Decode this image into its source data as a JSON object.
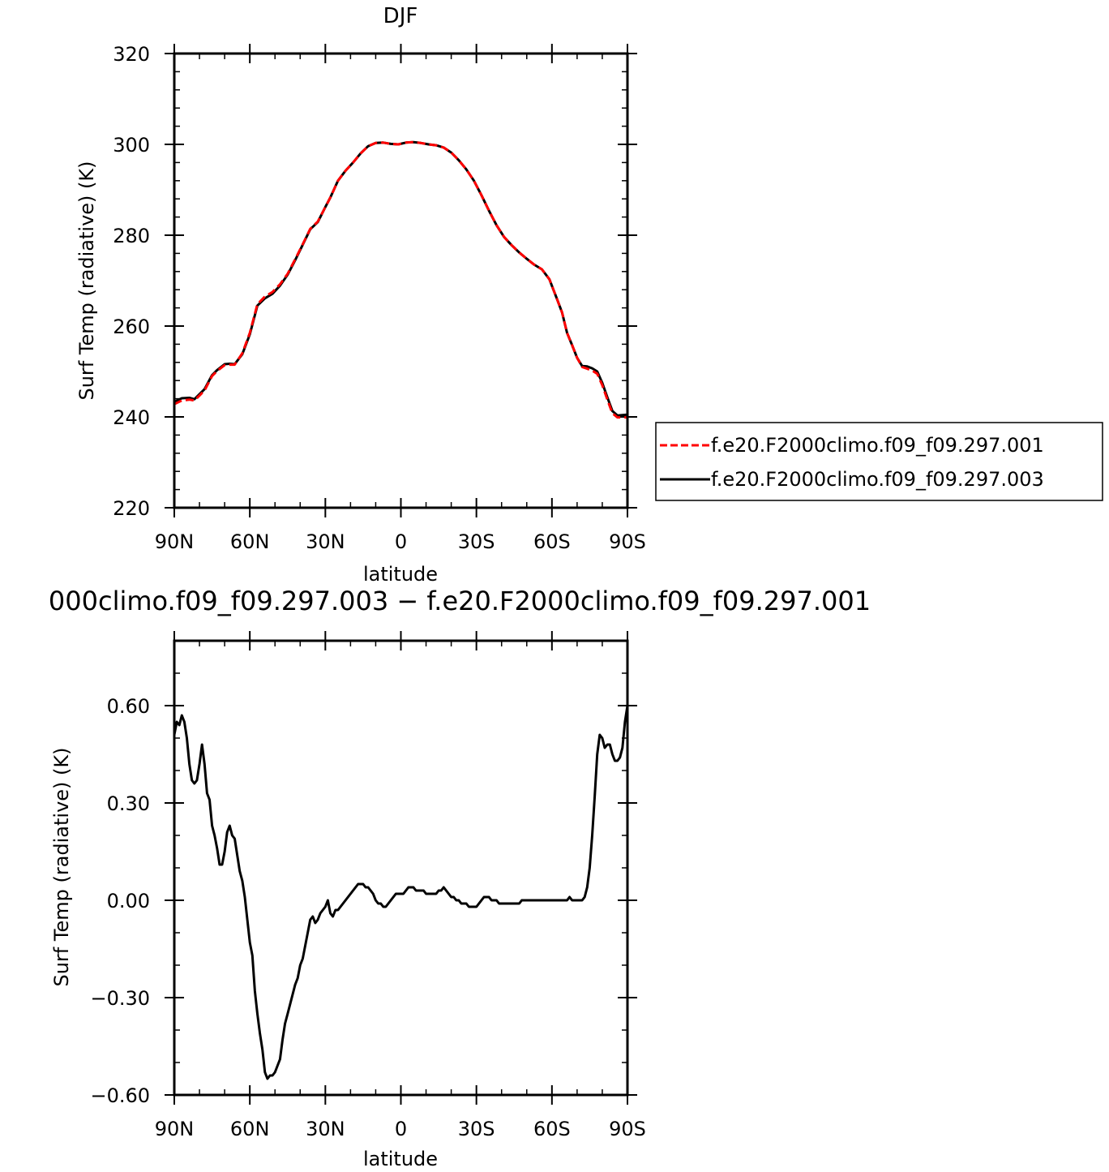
{
  "chart_data": [
    {
      "type": "line",
      "title": "DJF",
      "xlabel": "latitude",
      "ylabel": "Surf Temp (radiative) (K)",
      "x_axis": {
        "range": [
          90,
          -90
        ],
        "ticks": [
          90,
          60,
          30,
          0,
          -30,
          -60,
          -90
        ],
        "tick_labels": [
          "90N",
          "60N",
          "30N",
          "0",
          "30S",
          "60S",
          "90S"
        ]
      },
      "ylim": [
        220,
        320
      ],
      "y_ticks": [
        220,
        240,
        260,
        280,
        300,
        320
      ],
      "y_tick_labels": [
        "220",
        "240",
        "260",
        "280",
        "300",
        "320"
      ],
      "grid": false,
      "legend_position": "outside-right",
      "series": [
        {
          "name": "f.e20.F2000climo.f09_f09.297.001",
          "color": "#ff0000",
          "style": "dashed",
          "x": [
            90,
            87,
            84,
            82,
            80,
            78,
            75,
            73,
            70,
            68,
            66,
            63,
            60,
            57,
            54,
            51,
            48,
            45,
            42,
            39,
            36,
            33,
            30,
            28,
            25,
            22,
            19,
            16,
            13,
            10,
            7,
            4,
            1,
            -2,
            -5,
            -8,
            -11,
            -14,
            -17,
            -20,
            -23,
            -26,
            -29,
            -32,
            -35,
            -38,
            -41,
            -44,
            -47,
            -50,
            -53,
            -56,
            -59,
            -62,
            -64,
            -66,
            -68,
            -70,
            -72,
            -74,
            -76,
            -78,
            -80,
            -82,
            -84,
            -86,
            -88,
            -90
          ],
          "values": [
            242.8,
            243.6,
            243.8,
            243.6,
            244.7,
            245.8,
            249.0,
            250.1,
            251.4,
            251.5,
            251.5,
            254.0,
            258.5,
            264.8,
            266.5,
            267.5,
            269.2,
            271.5,
            274.7,
            278.0,
            281.4,
            283.0,
            286.2,
            288.3,
            292.0,
            294.2,
            296.0,
            298.0,
            299.6,
            300.3,
            300.4,
            300.1,
            300.0,
            300.4,
            300.5,
            300.3,
            300.0,
            299.8,
            299.3,
            298.2,
            296.5,
            294.5,
            292.0,
            288.8,
            285.4,
            282.2,
            279.6,
            277.8,
            276.2,
            274.8,
            273.5,
            272.5,
            270.3,
            266.0,
            263.0,
            258.5,
            255.8,
            253.0,
            251.0,
            250.6,
            250.2,
            249.5,
            247.0,
            243.8,
            240.8,
            239.9,
            239.9,
            239.9
          ]
        },
        {
          "name": "f.e20.F2000climo.f09_f09.297.003",
          "color": "#000000",
          "style": "solid",
          "x": [
            90,
            87,
            84,
            82,
            80,
            78,
            75,
            73,
            70,
            68,
            66,
            63,
            60,
            57,
            54,
            51,
            48,
            45,
            42,
            39,
            36,
            33,
            30,
            28,
            25,
            22,
            19,
            16,
            13,
            10,
            7,
            4,
            1,
            -2,
            -5,
            -8,
            -11,
            -14,
            -17,
            -20,
            -23,
            -26,
            -29,
            -32,
            -35,
            -38,
            -41,
            -44,
            -47,
            -50,
            -53,
            -56,
            -59,
            -62,
            -64,
            -66,
            -68,
            -70,
            -72,
            -74,
            -76,
            -78,
            -80,
            -82,
            -84,
            -86,
            -88,
            -90
          ],
          "values": [
            243.3,
            244.1,
            244.2,
            243.9,
            245.0,
            246.1,
            249.2,
            250.3,
            251.6,
            251.7,
            251.6,
            253.8,
            258.2,
            264.5,
            266.1,
            267.1,
            268.9,
            271.3,
            274.5,
            277.9,
            281.3,
            282.9,
            286.2,
            288.3,
            292.0,
            294.2,
            296.0,
            298.0,
            299.6,
            300.3,
            300.4,
            300.1,
            300.0,
            300.4,
            300.5,
            300.3,
            300.0,
            299.8,
            299.3,
            298.2,
            296.5,
            294.5,
            292.0,
            288.8,
            285.4,
            282.2,
            279.6,
            277.8,
            276.2,
            274.8,
            273.5,
            272.5,
            270.3,
            266.0,
            263.0,
            258.5,
            255.8,
            253.0,
            251.2,
            251.1,
            250.7,
            250.0,
            247.5,
            244.3,
            241.3,
            240.3,
            240.4,
            240.5
          ]
        }
      ]
    },
    {
      "type": "line",
      "title": "000climo.f09_f09.297.003 − f.e20.F2000climo.f09_f09.297.001",
      "xlabel": "latitude",
      "ylabel": "Surf Temp (radiative) (K)",
      "x_axis": {
        "range": [
          90,
          -90
        ],
        "ticks": [
          90,
          60,
          30,
          0,
          -30,
          -60,
          -90
        ],
        "tick_labels": [
          "90N",
          "60N",
          "30N",
          "0",
          "30S",
          "60S",
          "90S"
        ]
      },
      "ylim": [
        -0.6,
        0.8
      ],
      "y_ticks": [
        -0.6,
        -0.3,
        0.0,
        0.3,
        0.6
      ],
      "y_tick_labels": [
        "−0.60",
        "−0.30",
        "0.00",
        "0.30",
        "0.60"
      ],
      "grid": false,
      "series": [
        {
          "color": "#000000",
          "style": "solid",
          "x": [
            90,
            89,
            88,
            87,
            86,
            85,
            84,
            83,
            82,
            81,
            80,
            79,
            78,
            77,
            76,
            75,
            74,
            73,
            72,
            71,
            70,
            69,
            68,
            67,
            66,
            65,
            64,
            63,
            62,
            61,
            60,
            59,
            58,
            57,
            56,
            55,
            54,
            53,
            52,
            51,
            50,
            49,
            48,
            47,
            46,
            45,
            44,
            43,
            42,
            41,
            40,
            39,
            38,
            37,
            36,
            35,
            34,
            33,
            32,
            31,
            30,
            29,
            28,
            27,
            26,
            25,
            24,
            23,
            22,
            21,
            20,
            19,
            18,
            17,
            16,
            15,
            14,
            13,
            12,
            11,
            10,
            9,
            8,
            7,
            6,
            5,
            4,
            3,
            2,
            1,
            0,
            -1,
            -2,
            -3,
            -4,
            -5,
            -6,
            -7,
            -8,
            -9,
            -10,
            -11,
            -12,
            -13,
            -14,
            -15,
            -16,
            -17,
            -18,
            -19,
            -20,
            -21,
            -22,
            -23,
            -24,
            -25,
            -26,
            -27,
            -28,
            -29,
            -30,
            -31,
            -32,
            -33,
            -34,
            -35,
            -36,
            -37,
            -38,
            -39,
            -40,
            -41,
            -42,
            -43,
            -44,
            -45,
            -46,
            -47,
            -48,
            -49,
            -50,
            -51,
            -52,
            -53,
            -54,
            -55,
            -56,
            -57,
            -58,
            -59,
            -60,
            -61,
            -62,
            -63,
            -64,
            -65,
            -66,
            -67,
            -68,
            -69,
            -70,
            -71,
            -72,
            -73,
            -74,
            -75,
            -76,
            -77,
            -78,
            -79,
            -80,
            -81,
            -82,
            -83,
            -84,
            -85,
            -86,
            -87,
            -88,
            -89,
            -90
          ],
          "values": [
            0.51,
            0.55,
            0.54,
            0.57,
            0.55,
            0.5,
            0.42,
            0.37,
            0.36,
            0.37,
            0.42,
            0.48,
            0.42,
            0.33,
            0.31,
            0.23,
            0.2,
            0.16,
            0.11,
            0.11,
            0.15,
            0.21,
            0.23,
            0.2,
            0.19,
            0.14,
            0.09,
            0.06,
            0.01,
            -0.06,
            -0.13,
            -0.17,
            -0.28,
            -0.35,
            -0.41,
            -0.46,
            -0.53,
            -0.55,
            -0.54,
            -0.54,
            -0.53,
            -0.51,
            -0.49,
            -0.43,
            -0.38,
            -0.35,
            -0.32,
            -0.29,
            -0.26,
            -0.24,
            -0.2,
            -0.18,
            -0.14,
            -0.1,
            -0.06,
            -0.05,
            -0.07,
            -0.06,
            -0.04,
            -0.03,
            -0.02,
            0.0,
            -0.04,
            -0.05,
            -0.03,
            -0.03,
            -0.02,
            -0.01,
            0.0,
            0.01,
            0.02,
            0.03,
            0.04,
            0.05,
            0.05,
            0.05,
            0.04,
            0.04,
            0.03,
            0.02,
            0.0,
            -0.01,
            -0.01,
            -0.02,
            -0.02,
            -0.01,
            0.0,
            0.01,
            0.02,
            0.02,
            0.02,
            0.02,
            0.03,
            0.04,
            0.04,
            0.04,
            0.03,
            0.03,
            0.03,
            0.03,
            0.02,
            0.02,
            0.02,
            0.02,
            0.02,
            0.03,
            0.03,
            0.04,
            0.03,
            0.02,
            0.01,
            0.01,
            0.0,
            0.0,
            -0.01,
            -0.01,
            -0.01,
            -0.02,
            -0.02,
            -0.02,
            -0.02,
            -0.01,
            0.0,
            0.01,
            0.01,
            0.01,
            0.0,
            0.0,
            0.0,
            -0.01,
            -0.01,
            -0.01,
            -0.01,
            -0.01,
            -0.01,
            -0.01,
            -0.01,
            -0.01,
            0.0,
            0.0,
            0.0,
            0.0,
            0.0,
            0.0,
            0.0,
            0.0,
            0.0,
            0.0,
            0.0,
            0.0,
            0.0,
            0.0,
            0.0,
            0.0,
            0.0,
            0.0,
            0.0,
            0.01,
            0.0,
            0.0,
            0.0,
            0.0,
            0.0,
            0.01,
            0.04,
            0.1,
            0.2,
            0.32,
            0.45,
            0.51,
            0.5,
            0.47,
            0.48,
            0.48,
            0.45,
            0.43,
            0.43,
            0.44,
            0.47,
            0.55,
            0.6
          ]
        }
      ]
    }
  ]
}
